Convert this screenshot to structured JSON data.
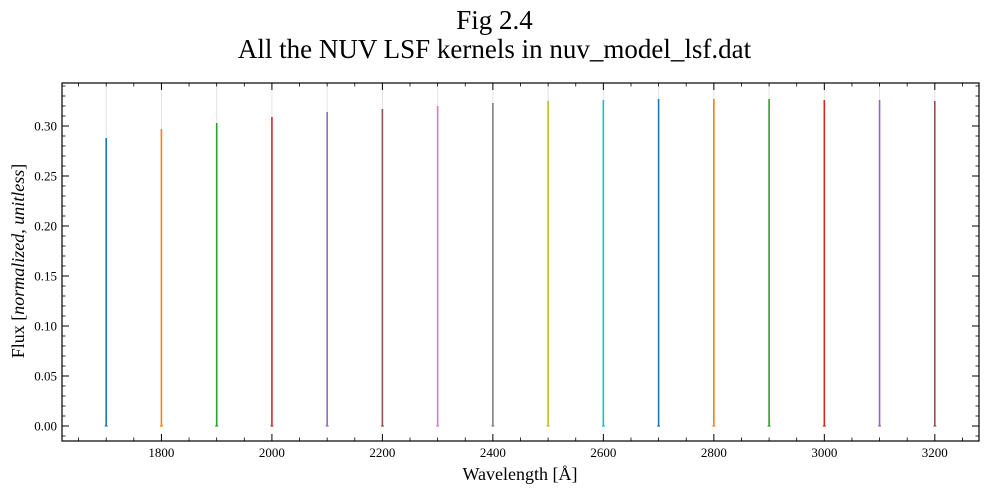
{
  "figure": {
    "title_line1": "Fig 2.4",
    "title_line2": "All the NUV LSF kernels in nuv_model_lsf.dat"
  },
  "chart_data": {
    "type": "line",
    "xlabel": "Wavelength [Å]",
    "ylabel": "Flux [normalized, unitless]",
    "xlim": [
      1620,
      3280
    ],
    "ylim": [
      -0.015,
      0.343
    ],
    "xticks": [
      1800,
      2000,
      2200,
      2400,
      2600,
      2800,
      3000,
      3200
    ],
    "yticks": [
      0.0,
      0.05,
      0.1,
      0.15,
      0.2,
      0.25,
      0.3
    ],
    "ytick_labels": [
      "0.00",
      "0.05",
      "0.10",
      "0.15",
      "0.20",
      "0.25",
      "0.30"
    ],
    "grid": false,
    "legend": "none",
    "series": [
      {
        "center": 1700,
        "peak": 0.288,
        "color": "#1f77b4"
      },
      {
        "center": 1800,
        "peak": 0.297,
        "color": "#ff7f0e"
      },
      {
        "center": 1900,
        "peak": 0.303,
        "color": "#2ca02c"
      },
      {
        "center": 2000,
        "peak": 0.309,
        "color": "#d62728"
      },
      {
        "center": 2100,
        "peak": 0.314,
        "color": "#9467bd"
      },
      {
        "center": 2200,
        "peak": 0.317,
        "color": "#8c564b"
      },
      {
        "center": 2300,
        "peak": 0.32,
        "color": "#e377c2"
      },
      {
        "center": 2400,
        "peak": 0.323,
        "color": "#7f7f7f"
      },
      {
        "center": 2500,
        "peak": 0.325,
        "color": "#bcbd22"
      },
      {
        "center": 2600,
        "peak": 0.326,
        "color": "#17becf"
      },
      {
        "center": 2700,
        "peak": 0.327,
        "color": "#1f77b4"
      },
      {
        "center": 2800,
        "peak": 0.327,
        "color": "#ff7f0e"
      },
      {
        "center": 2900,
        "peak": 0.327,
        "color": "#2ca02c"
      },
      {
        "center": 3000,
        "peak": 0.326,
        "color": "#d62728"
      },
      {
        "center": 3100,
        "peak": 0.326,
        "color": "#9467bd"
      },
      {
        "center": 3200,
        "peak": 0.325,
        "color": "#8c564b"
      }
    ]
  }
}
